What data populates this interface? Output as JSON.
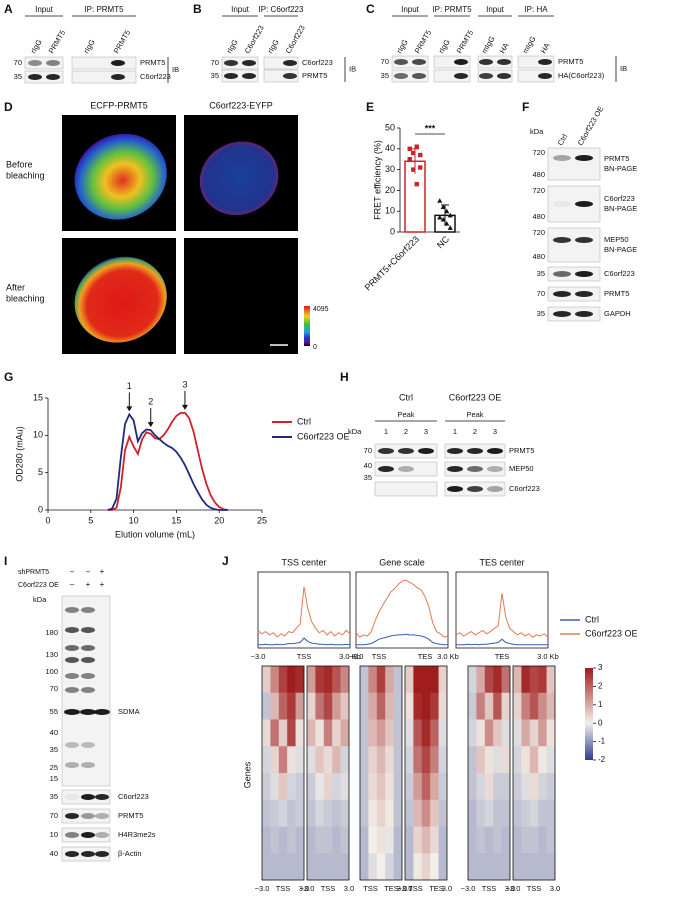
{
  "panels": {
    "A": {
      "letter": "A",
      "headers": [
        "Input",
        "IP: PRMT5"
      ],
      "lanes": [
        "rIgG",
        "PRMT5",
        "rIgG",
        "PRMT5"
      ],
      "kda": [
        70,
        35
      ],
      "bands": [
        "PRMT5",
        "C6orf223"
      ],
      "ib": "IB"
    },
    "B": {
      "letter": "B",
      "headers": [
        "Input",
        "IP: C6orf223"
      ],
      "lanes": [
        "rIgG",
        "C6orf223",
        "rIgG",
        "C6orf223"
      ],
      "kda": [
        70,
        35
      ],
      "bands": [
        "C6orf223",
        "PRMT5"
      ],
      "ib": "IB"
    },
    "C": {
      "letter": "C",
      "headers": [
        "Input",
        "IP: PRMT5",
        "Input",
        "IP: HA"
      ],
      "lanes": [
        "rIgG",
        "PRMT5",
        "rIgG",
        "PRMT5",
        "mIgG",
        "HA",
        "mIgG",
        "HA"
      ],
      "kda": [
        70,
        35
      ],
      "bands": [
        "PRMT5",
        "HA(C6orf223)"
      ],
      "ib": "IB"
    },
    "D": {
      "letter": "D",
      "columns": [
        "ECFP-PRMT5",
        "C6orf223-EYFP"
      ],
      "rows": [
        [
          "Before",
          "bleaching"
        ],
        [
          "After",
          "bleaching"
        ]
      ],
      "scale": [
        4095,
        0
      ]
    },
    "E": {
      "letter": "E"
    },
    "F": {
      "letter": "F",
      "lanes": [
        "Ctrl",
        "C6orf223 OE"
      ],
      "kda_label": "kDa",
      "blots": [
        {
          "kda": [
            720,
            480
          ],
          "label": [
            "PRMT5",
            "BN-PAGE"
          ]
        },
        {
          "kda": [
            720,
            480
          ],
          "label": [
            "C6orf223",
            "BN-PAGE"
          ]
        },
        {
          "kda": [
            720,
            480
          ],
          "label": [
            "MEP50",
            "BN-PAGE"
          ]
        },
        {
          "kda": [
            35
          ],
          "label": [
            "C6orf223"
          ]
        },
        {
          "kda": [
            70
          ],
          "label": [
            "PRMT5"
          ]
        },
        {
          "kda": [
            35
          ],
          "label": [
            "GAPDH"
          ]
        }
      ]
    },
    "G": {
      "letter": "G"
    },
    "H": {
      "letter": "H",
      "groups": [
        "Ctrl",
        "C6orf223 OE"
      ],
      "peaks": [
        "Peak",
        "Peak"
      ],
      "lanes": [
        1,
        2,
        3,
        1,
        2,
        3
      ],
      "kda_label": "kDa",
      "kda": [
        70,
        40,
        35
      ],
      "bands": [
        "PRMT5",
        "MEP50",
        "C6orf223"
      ]
    },
    "I": {
      "letter": "I",
      "rows": [
        {
          "label": "shPRMT5",
          "signs": [
            "–",
            "–",
            "+"
          ]
        },
        {
          "label": "C6orf223 OE",
          "signs": [
            "–",
            "+",
            "+"
          ]
        }
      ],
      "kda_label": "kDa",
      "sdma_kda": [
        180,
        130,
        100,
        70,
        55,
        40,
        35,
        25,
        15
      ],
      "sdma": "SDMA",
      "blots": [
        {
          "kda": 35,
          "label": "C6orf223"
        },
        {
          "kda": 70,
          "label": "PRMT5"
        },
        {
          "kda": 10,
          "label": "H4R3me2s"
        },
        {
          "kda": 40,
          "label": "β-Actin"
        }
      ]
    },
    "J": {
      "letter": "J"
    }
  },
  "chart_data": [
    {
      "type": "bar",
      "ylabel": "FRET efficiency (%)",
      "categories": [
        "PRMT5+C6orf223",
        "NC"
      ],
      "values": [
        34,
        8
      ],
      "errors": [
        6,
        5
      ],
      "points": [
        [
          40,
          38,
          41,
          37,
          35,
          30,
          23,
          31
        ],
        [
          15,
          12,
          10,
          8,
          7,
          6,
          4,
          2
        ]
      ],
      "markers": [
        "square",
        "triangle"
      ],
      "colors": [
        "#d0202a",
        "#111111"
      ],
      "ylim": [
        0,
        50
      ],
      "yticks": [
        0,
        10,
        20,
        30,
        40,
        50
      ],
      "annotation": "***"
    },
    {
      "type": "line",
      "xlabel": "Elution volume (mL)",
      "ylabel": "OD280 (mAu)",
      "x": [
        7,
        7.5,
        8,
        8.5,
        9,
        9.5,
        10,
        10.5,
        11,
        11.5,
        12,
        12.5,
        13,
        13.5,
        14,
        14.5,
        15,
        15.5,
        16,
        16.5,
        17,
        17.5,
        18,
        18.5,
        19,
        19.5,
        20,
        20.5,
        21
      ],
      "series": [
        {
          "name": "Ctrl",
          "color": "#d0202a",
          "values": [
            0,
            0,
            0.3,
            3,
            8,
            9.8,
            8.5,
            7.5,
            9.5,
            10.4,
            10.2,
            9.6,
            9.5,
            10,
            10.8,
            11.8,
            12.6,
            13,
            13,
            12.3,
            10.5,
            8,
            5.5,
            3.5,
            2,
            1,
            0.4,
            0.1,
            0
          ]
        },
        {
          "name": "C6orf223 OE",
          "color": "#1f2a7a",
          "values": [
            0,
            0.2,
            1.5,
            7,
            11.5,
            12.8,
            12,
            9.2,
            10.3,
            10.8,
            10.7,
            10,
            9.5,
            9,
            8.6,
            8.3,
            7.8,
            7,
            6,
            4.8,
            3.5,
            2.4,
            1.4,
            0.7,
            0.3,
            0.1,
            0,
            0,
            0
          ]
        }
      ],
      "xlim": [
        0,
        25
      ],
      "xticks": [
        0,
        5,
        10,
        15,
        20,
        25
      ],
      "ylim": [
        0,
        15
      ],
      "yticks": [
        0,
        5,
        10,
        15
      ],
      "annotations": [
        {
          "label": 1,
          "x": 9.5
        },
        {
          "label": 2,
          "x": 12
        },
        {
          "label": 3,
          "x": 16
        }
      ]
    },
    {
      "type": "profile",
      "title": "TSS center",
      "xlabels": [
        "−3.0",
        "TSS",
        "3.0 Kb"
      ],
      "series": [
        {
          "color": "#3b5bb5",
          "values": [
            0.3,
            0.3,
            0.35,
            0.3,
            0.3,
            0.35,
            0.3,
            0.35,
            0.4,
            0.4,
            0.45,
            0.5,
            0.9,
            0.6,
            0.45,
            0.4,
            0.35,
            0.35,
            0.3,
            0.35,
            0.3,
            0.3,
            0.3,
            0.35,
            0.3
          ]
        },
        {
          "color": "#e07b53",
          "values": [
            1.6,
            1.3,
            1.5,
            1.2,
            1.4,
            1.0,
            1.3,
            1.1,
            1.5,
            1.4,
            1.8,
            2.2,
            5.6,
            3.6,
            2.4,
            1.8,
            1.4,
            1.6,
            1.2,
            1.5,
            1.1,
            1.4,
            1.2,
            1.6,
            1.3
          ]
        }
      ]
    },
    {
      "type": "profile",
      "title": "Gene scale",
      "xlabels": [
        "−3.0",
        "TSS",
        "TES",
        "3.0 Kb"
      ],
      "series": [
        {
          "color": "#3b5bb5",
          "values": [
            0.3,
            0.3,
            0.3,
            0.35,
            0.4,
            0.6,
            0.8,
            0.9,
            1.0,
            1.1,
            1.15,
            1.2,
            1.2,
            1.25,
            1.2,
            1.2,
            1.15,
            1.1,
            1.0,
            0.8,
            0.5,
            0.4,
            0.35,
            0.3,
            0.3
          ]
        },
        {
          "color": "#e07b53",
          "values": [
            1.4,
            1.0,
            1.2,
            1.1,
            1.5,
            2.5,
            3.3,
            3.9,
            4.5,
            5.1,
            5.4,
            5.8,
            6.1,
            6.2,
            6.0,
            5.8,
            5.5,
            5.3,
            4.7,
            3.8,
            2.3,
            1.5,
            1.3,
            1.0,
            1.1
          ]
        }
      ]
    },
    {
      "type": "profile",
      "title": "TES center",
      "xlabels": [
        "TES",
        "3.0 Kb"
      ],
      "legend": "right",
      "series": [
        {
          "name": "Ctrl",
          "color": "#3b5bb5",
          "values": [
            0.3,
            0.3,
            0.3,
            0.35,
            0.3,
            0.35,
            0.3,
            0.35,
            0.35,
            0.4,
            0.45,
            0.5,
            0.8,
            0.5,
            0.4,
            0.35,
            0.3,
            0.3,
            0.3,
            0.3,
            0.3,
            0.3,
            0.3,
            0.3,
            0.3
          ]
        },
        {
          "name": "C6orf223 OE",
          "color": "#e07b53",
          "values": [
            1.2,
            1.4,
            1.1,
            1.3,
            1.5,
            1.2,
            1.4,
            1.6,
            1.3,
            1.5,
            1.8,
            2.0,
            5.0,
            2.8,
            1.8,
            1.5,
            1.2,
            1.4,
            1.1,
            1.3,
            1.0,
            1.2,
            1.1,
            1.3,
            1.0
          ]
        }
      ]
    },
    {
      "type": "heatmap",
      "ylabel": "Genes",
      "zlim": [
        -2,
        3
      ],
      "zticks": [
        -2,
        -1,
        0,
        1,
        2,
        3
      ],
      "panels": [
        {
          "xlabels": [
            "−3.0",
            "TSS",
            "3.0"
          ],
          "values": [
            [
              0.5,
              1.5,
              2.5,
              3,
              2.8
            ],
            [
              -0.5,
              0.8,
              2.0,
              2.6,
              1.2
            ],
            [
              0.3,
              1.8,
              0.5,
              2.4,
              0.2
            ],
            [
              -0.3,
              0.4,
              1.6,
              0.2,
              -0.2
            ],
            [
              -0.4,
              -0.2,
              0.6,
              -0.3,
              -0.4
            ],
            [
              -0.5,
              -0.4,
              -0.3,
              -0.5,
              -0.4
            ],
            [
              -0.6,
              -0.5,
              -0.6,
              -0.5,
              -0.6
            ],
            [
              -0.6,
              -0.6,
              -0.6,
              -0.6,
              -0.6
            ]
          ]
        },
        {
          "xlabels": [
            "−3.0",
            "TSS",
            "3.0"
          ],
          "values": [
            [
              1.2,
              2.6,
              2.8,
              2.2,
              1.5
            ],
            [
              0.4,
              1.8,
              2.4,
              1.2,
              0.6
            ],
            [
              0.8,
              0.2,
              1.6,
              0.4,
              1.0
            ],
            [
              -0.2,
              0.6,
              0.3,
              0.8,
              -0.3
            ],
            [
              -0.4,
              -0.1,
              0.4,
              -0.3,
              -0.2
            ],
            [
              -0.5,
              -0.3,
              -0.4,
              -0.5,
              -0.4
            ],
            [
              -0.6,
              -0.5,
              -0.5,
              -0.6,
              -0.5
            ],
            [
              -0.6,
              -0.6,
              -0.6,
              -0.6,
              -0.6
            ]
          ]
        },
        {
          "xlabels": [
            "TSS",
            "TES",
            "3.0"
          ],
          "values": [
            [
              -0.5,
              1.5,
              2.5,
              1.0,
              -0.5
            ],
            [
              -0.5,
              1.0,
              2.0,
              0.8,
              -0.5
            ],
            [
              -0.5,
              0.8,
              1.2,
              0.6,
              -0.5
            ],
            [
              -0.5,
              0.4,
              0.8,
              0.3,
              -0.5
            ],
            [
              -0.5,
              0.3,
              0.6,
              0.2,
              -0.5
            ],
            [
              -0.5,
              0.1,
              0.4,
              0.1,
              -0.5
            ],
            [
              -0.6,
              0.0,
              0.2,
              -0.1,
              -0.6
            ],
            [
              -0.6,
              -0.2,
              0.0,
              -0.3,
              -0.6
            ]
          ]
        },
        {
          "xlabels": [
            "−3.0",
            "TSS",
            "TES",
            "3.0"
          ],
          "values": [
            [
              0.5,
              3.0,
              3.0,
              3.0,
              0.4
            ],
            [
              0.2,
              2.8,
              3.0,
              2.6,
              0.3
            ],
            [
              -0.2,
              2.2,
              2.8,
              2.0,
              -0.2
            ],
            [
              -0.3,
              1.8,
              2.4,
              1.6,
              -0.3
            ],
            [
              -0.4,
              1.2,
              2.0,
              1.0,
              -0.4
            ],
            [
              -0.5,
              0.8,
              1.4,
              0.6,
              -0.5
            ],
            [
              -0.6,
              0.4,
              0.8,
              0.3,
              -0.6
            ],
            [
              -0.6,
              0.1,
              0.4,
              0.0,
              -0.6
            ]
          ]
        },
        {
          "xlabels": [
            "−3.0",
            "TSS",
            "3.0"
          ],
          "values": [
            [
              -0.3,
              1.0,
              2.4,
              2.8,
              1.8
            ],
            [
              -0.4,
              1.6,
              0.6,
              2.2,
              0.4
            ],
            [
              -0.3,
              0.2,
              1.4,
              0.6,
              -0.2
            ],
            [
              -0.5,
              0.6,
              0.2,
              -0.2,
              0.3
            ],
            [
              -0.5,
              -0.3,
              0.3,
              -0.4,
              -0.4
            ],
            [
              -0.6,
              -0.4,
              -0.3,
              -0.5,
              -0.5
            ],
            [
              -0.6,
              -0.5,
              -0.6,
              -0.5,
              -0.6
            ],
            [
              -0.6,
              -0.6,
              -0.6,
              -0.6,
              -0.6
            ]
          ]
        },
        {
          "xlabels": [
            "−3.0",
            "TSS",
            "3.0"
          ],
          "values": [
            [
              0.8,
              2.8,
              2.4,
              2.6,
              0.6
            ],
            [
              0.4,
              1.6,
              2.2,
              1.4,
              0.8
            ],
            [
              -0.2,
              1.0,
              0.4,
              1.2,
              0.2
            ],
            [
              -0.3,
              0.2,
              0.8,
              0.1,
              -0.2
            ],
            [
              -0.4,
              -0.2,
              0.3,
              -0.3,
              -0.4
            ],
            [
              -0.5,
              -0.4,
              -0.3,
              -0.5,
              -0.5
            ],
            [
              -0.6,
              -0.5,
              -0.5,
              -0.6,
              -0.5
            ],
            [
              -0.6,
              -0.6,
              -0.6,
              -0.6,
              -0.6
            ]
          ]
        }
      ]
    }
  ]
}
